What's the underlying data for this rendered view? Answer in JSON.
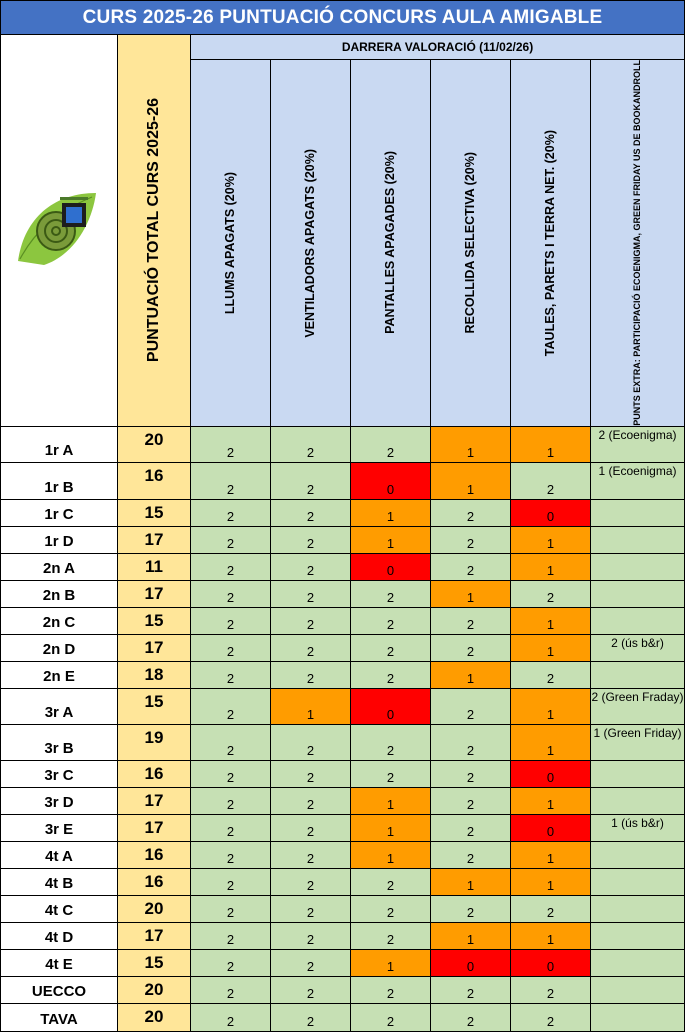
{
  "title": "CURS 2025-26 PUNTUACIÓ CONCURS AULA AMIGABLE",
  "subheader": "DARRERA VALORACIÓ (11/02/26)",
  "logo": {
    "alt": "Logo aula amigable (cargol)"
  },
  "columns": {
    "total": "PUNTUACIÓ TOTAL CURS 2025-26",
    "llums": "LLUMS APAGATS (20%)",
    "ventiladors": "VENTILADORS APAGATS (20%)",
    "pantalles": "PANTALLES APAGADES (20%)",
    "recollida": "RECOLLIDA SELECTIVA (20%)",
    "taules": "TAULES, PARETS I TERRA NET. (20%)",
    "extra": "PUNTS EXTRA: PARTICIPACIÓ ECOENIGMA, GREEN FRIDAY US DE BOOKANDROLL"
  },
  "colors": {
    "green": "#c6e0b4",
    "orange": "#ff9c00",
    "red": "#ff0000",
    "yellow": "#ffe699",
    "blue_header": "#c9d9f2",
    "title_blue": "#4472c4"
  },
  "rows": [
    {
      "cls": "1r A",
      "total": "20",
      "scores": [
        2,
        2,
        2,
        1,
        1
      ],
      "extra": "2 (Ecoenigma)"
    },
    {
      "cls": "1r B",
      "total": "16",
      "scores": [
        2,
        2,
        0,
        1,
        2
      ],
      "extra": "1 (Ecoenigma)"
    },
    {
      "cls": "1r C",
      "total": "15",
      "scores": [
        2,
        2,
        1,
        2,
        0
      ],
      "extra": ""
    },
    {
      "cls": "1r D",
      "total": "17",
      "scores": [
        2,
        2,
        1,
        2,
        1
      ],
      "extra": ""
    },
    {
      "cls": "2n A",
      "total": "11",
      "scores": [
        2,
        2,
        0,
        2,
        1
      ],
      "extra": ""
    },
    {
      "cls": "2n B",
      "total": "17",
      "scores": [
        2,
        2,
        2,
        1,
        2
      ],
      "extra": ""
    },
    {
      "cls": "2n C",
      "total": "15",
      "scores": [
        2,
        2,
        2,
        2,
        1
      ],
      "extra": ""
    },
    {
      "cls": "2n D",
      "total": "17",
      "scores": [
        2,
        2,
        2,
        2,
        1
      ],
      "extra": "2 (ús b&r)"
    },
    {
      "cls": "2n E",
      "total": "18",
      "scores": [
        2,
        2,
        2,
        1,
        2
      ],
      "extra": ""
    },
    {
      "cls": "3r A",
      "total": "15",
      "scores": [
        2,
        1,
        0,
        2,
        1
      ],
      "extra": "2 (Green Fraday)"
    },
    {
      "cls": "3r B",
      "total": "19",
      "scores": [
        2,
        2,
        2,
        2,
        1
      ],
      "extra": "1 (Green Friday)"
    },
    {
      "cls": "3r C",
      "total": "16",
      "scores": [
        2,
        2,
        2,
        2,
        0
      ],
      "extra": ""
    },
    {
      "cls": "3r D",
      "total": "17",
      "scores": [
        2,
        2,
        1,
        2,
        1
      ],
      "extra": ""
    },
    {
      "cls": "3r E",
      "total": "17",
      "scores": [
        2,
        2,
        1,
        2,
        0
      ],
      "extra": "1 (ús b&r)"
    },
    {
      "cls": "4t A",
      "total": "16",
      "scores": [
        2,
        2,
        1,
        2,
        1
      ],
      "extra": ""
    },
    {
      "cls": "4t B",
      "total": "16",
      "scores": [
        2,
        2,
        2,
        1,
        1
      ],
      "extra": ""
    },
    {
      "cls": "4t C",
      "total": "20",
      "scores": [
        2,
        2,
        2,
        2,
        2
      ],
      "extra": ""
    },
    {
      "cls": "4t D",
      "total": "17",
      "scores": [
        2,
        2,
        2,
        1,
        1
      ],
      "extra": ""
    },
    {
      "cls": "4t E",
      "total": "15",
      "scores": [
        2,
        2,
        1,
        0,
        0
      ],
      "extra": ""
    },
    {
      "cls": "UECCO",
      "total": "20",
      "scores": [
        2,
        2,
        2,
        2,
        2
      ],
      "extra": ""
    },
    {
      "cls": "TAVA",
      "total": "20",
      "scores": [
        2,
        2,
        2,
        2,
        2
      ],
      "extra": ""
    }
  ]
}
